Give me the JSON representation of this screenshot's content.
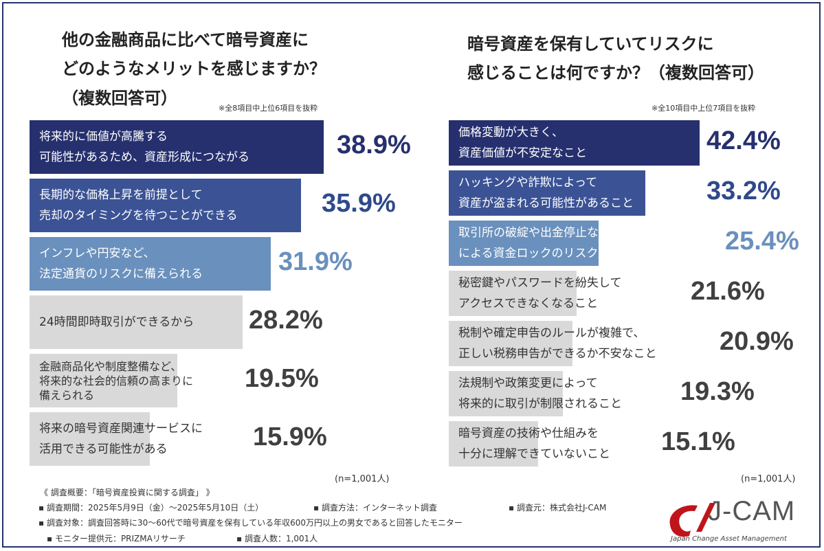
{
  "colors": {
    "rank1": "#26306e",
    "rank2": "#3b5395",
    "rank3": "#6a90bd",
    "other": "#d9d9d9",
    "val1": "#26306e",
    "val2": "#2f4a8a",
    "val3": "#6a90bd",
    "valOther": "#404040",
    "label_light": "#ffffff",
    "label_dark": "#333333",
    "logo_red": "#c0141b"
  },
  "chart_data": [
    {
      "type": "bar",
      "title": [
        "他の金融商品に比べて暗号資産に",
        "どのようなメリットを感じますか？",
        "（複数回答可）"
      ],
      "note": "※全8項目中上位6項目を抜粋",
      "n_label": "(n=1,001人)",
      "categories": [
        [
          "将来的に価値が高騰する",
          "可能性があるため、資産形成につながる"
        ],
        [
          "長期的な価格上昇を前提として",
          "売却のタイミングを待つことができる"
        ],
        [
          "インフレや円安など、",
          "法定通貨のリスクに備えられる"
        ],
        [
          "24時間即時取引ができるから"
        ],
        [
          "金融商品化や制度整備など、",
          "将来的な社会的信頼の高まりに",
          "備えられる"
        ],
        [
          "将来の暗号資産関連サービスに",
          "活用できる可能性がある"
        ]
      ],
      "values": [
        38.9,
        35.9,
        31.9,
        28.2,
        19.5,
        15.9
      ],
      "value_labels": [
        "38.9%",
        "35.9%",
        "31.9%",
        "28.2%",
        "19.5%",
        "15.9%"
      ],
      "unit": "%"
    },
    {
      "type": "bar",
      "title": [
        "暗号資産を保有していてリスクに",
        "感じることは何ですか？（複数回答可）"
      ],
      "note": "※全10項目中上位7項目を抜粋",
      "n_label": "(n=1,001人)",
      "categories": [
        [
          "価格変動が大きく、",
          "資産価値が不安定なこと"
        ],
        [
          "ハッキングや詐欺によって",
          "資産が盗まれる可能性があること"
        ],
        [
          "取引所の破綻や出金停止など",
          "による資金ロックのリスク"
        ],
        [
          "秘密鍵やパスワードを紛失して",
          "アクセスできなくなること"
        ],
        [
          "税制や確定申告のルールが複雑で、",
          "正しい税務申告ができるか不安なこと"
        ],
        [
          "法規制や政策変更によって",
          "将来的に取引が制限されること"
        ],
        [
          "暗号資産の技術や仕組みを",
          "十分に理解できていないこと"
        ]
      ],
      "values": [
        42.4,
        33.2,
        25.4,
        21.6,
        20.9,
        19.3,
        15.1
      ],
      "value_labels": [
        "42.4%",
        "33.2%",
        "25.4%",
        "21.6%",
        "20.9%",
        "19.3%",
        "15.1%"
      ],
      "unit": "%"
    }
  ],
  "footer": {
    "overview": "《 調査概要：「暗号資産投資に関する調査」 》",
    "period": "▪ 調査期間：2025年5月9日（金）〜2025年5月10日（土）",
    "method": "▪ 調査方法：インターネット調査",
    "source": "▪ 調査元：株式会社J-CAM",
    "target": "▪ 調査対象：調査回答時に30〜60代で暗号資産を保有している年収600万円以上の男女であると回答したモニター",
    "provider": "▪ モニター提供元：PRIZMAリサーチ",
    "count": "▪ 調査人数：1,001人"
  },
  "logo": {
    "name": "J-CAM",
    "tagline": "Japan Change Asset Management"
  }
}
